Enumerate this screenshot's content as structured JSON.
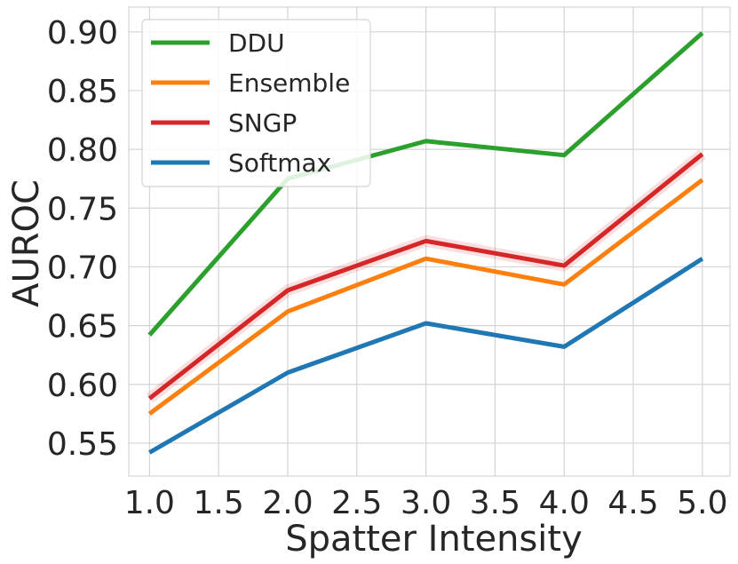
{
  "chart_data": {
    "type": "line",
    "title": "",
    "xlabel": "Spatter Intensity",
    "ylabel": "AUROC",
    "x": [
      1.0,
      2.0,
      3.0,
      4.0,
      5.0
    ],
    "xlim": [
      0.85,
      5.2
    ],
    "ylim": [
      0.522,
      0.921
    ],
    "xticks": [
      "1.0",
      "1.5",
      "2.0",
      "2.5",
      "3.0",
      "3.5",
      "4.0",
      "4.5",
      "5.0"
    ],
    "yticks": [
      "0.55",
      "0.60",
      "0.65",
      "0.70",
      "0.75",
      "0.80",
      "0.85",
      "0.90"
    ],
    "grid": true,
    "legend_position": "top-left",
    "series": [
      {
        "name": "DDU",
        "color": "#2ca02c",
        "values": [
          0.642,
          0.775,
          0.807,
          0.795,
          0.899
        ]
      },
      {
        "name": "Ensemble",
        "color": "#ff7f0e",
        "values": [
          0.575,
          0.662,
          0.707,
          0.685,
          0.774
        ]
      },
      {
        "name": "SNGP",
        "color": "#d62728",
        "values": [
          0.588,
          0.68,
          0.722,
          0.701,
          0.796
        ]
      },
      {
        "name": "Softmax",
        "color": "#1f77b4",
        "values": [
          0.542,
          0.61,
          0.652,
          0.632,
          0.707
        ]
      }
    ]
  }
}
